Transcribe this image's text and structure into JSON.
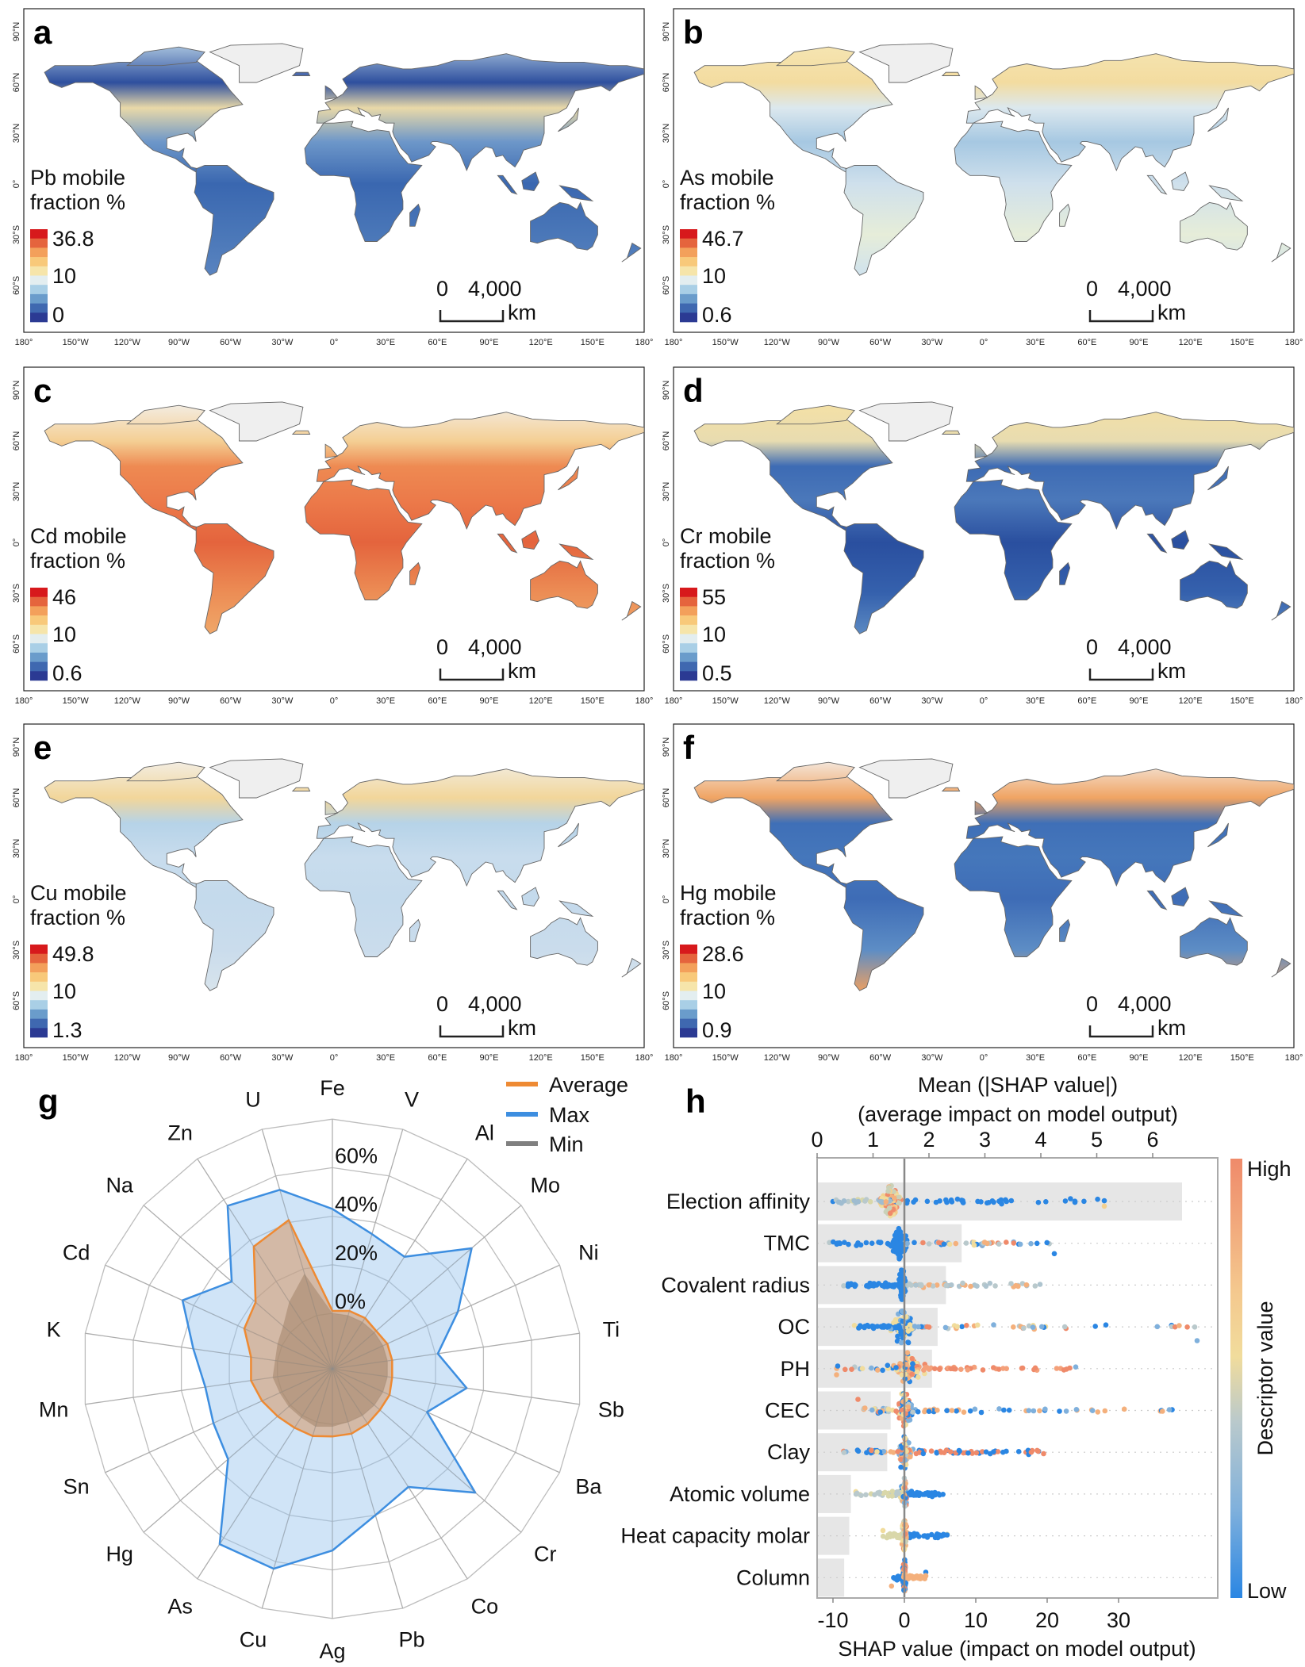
{
  "maps": {
    "lat_labels": [
      "90°N",
      "60°N",
      "30°N",
      "0°",
      "30°S",
      "60°S"
    ],
    "lon_labels": [
      "180°",
      "150°W",
      "120°W",
      "90°W",
      "60°W",
      "30°W",
      "0°",
      "30°E",
      "60°E",
      "90°E",
      "120°E",
      "150°E",
      "180°"
    ],
    "legend_colors": [
      "#d7191c",
      "#e5643d",
      "#f3a05b",
      "#f8c97a",
      "#f6e5aa",
      "#e3eef0",
      "#a9cfe6",
      "#6a9ccb",
      "#3f68b0",
      "#2b3a93"
    ],
    "scale_bar": {
      "zero": "0",
      "distance": "4,000",
      "unit": "km"
    },
    "panels": [
      {
        "letter": "a",
        "title_line1": "Pb mobile",
        "title_line2": "fraction %",
        "max": "36.8",
        "mid": "10",
        "min": "0"
      },
      {
        "letter": "b",
        "title_line1": "As mobile",
        "title_line2": "fraction %",
        "max": "46.7",
        "mid": "10",
        "min": "0.6"
      },
      {
        "letter": "c",
        "title_line1": "Cd mobile",
        "title_line2": "fraction %",
        "max": "46",
        "mid": "10",
        "min": "0.6"
      },
      {
        "letter": "d",
        "title_line1": "Cr mobile",
        "title_line2": "fraction %",
        "max": "55",
        "mid": "10",
        "min": "0.5"
      },
      {
        "letter": "e",
        "title_line1": "Cu mobile",
        "title_line2": "fraction %",
        "max": "49.8",
        "mid": "10",
        "min": "1.3"
      },
      {
        "letter": "f",
        "title_line1": "Hg mobile",
        "title_line2": "fraction %",
        "max": "28.6",
        "mid": "10",
        "min": "0.9"
      }
    ]
  },
  "chart_data": [
    {
      "panel": "g",
      "type": "radar",
      "categories": [
        "Fe",
        "V",
        "Al",
        "Mo",
        "Ni",
        "Ti",
        "Sb",
        "Ba",
        "Cr",
        "Co",
        "Pb",
        "Ag",
        "Cu",
        "As",
        "Hg",
        "Sn",
        "Mn",
        "K",
        "Cd",
        "Na",
        "Zn",
        "U"
      ],
      "ring_labels": [
        "0%",
        "20%",
        "40%",
        "60%"
      ],
      "rlim": [
        0,
        80
      ],
      "series": [
        {
          "name": "Average",
          "color": "#ee8a33",
          "values": [
            1,
            2,
            2,
            1,
            2,
            2,
            2,
            3,
            3,
            4,
            5,
            5,
            6,
            6,
            7,
            9,
            11,
            11,
            17,
            19,
            37,
            41
          ]
        },
        {
          "name": "Max",
          "color": "#3d8ee0",
          "values": [
            43,
            35,
            32,
            53,
            34,
            21,
            33,
            20,
            55,
            35,
            40,
            52,
            63,
            63,
            34,
            31,
            30,
            35,
            45,
            32,
            57,
            54
          ]
        },
        {
          "name": "Min",
          "color": "#808080",
          "values": [
            0,
            0,
            0,
            0,
            0,
            0,
            0,
            0,
            0,
            0,
            0,
            1,
            2,
            1,
            1,
            1,
            2,
            1,
            2,
            4,
            10,
            18
          ]
        }
      ],
      "legend_position": "top-right"
    },
    {
      "panel": "h",
      "type": "bar+beeswarm",
      "title_line1": "Mean (|SHAP value|)",
      "title_line2": "(average impact on model output)",
      "xlabel": "SHAP value (impact on model output)",
      "top_ticks": [
        "0",
        "1",
        "2",
        "3",
        "4",
        "5",
        "6"
      ],
      "bottom_ticks": [
        "-10",
        "0",
        "10",
        "20",
        "30"
      ],
      "top_xlim": [
        0,
        6.5
      ],
      "bottom_xlim": [
        -11,
        42
      ],
      "categories": [
        "Election affinity",
        "TMC",
        "Covalent radius",
        "OC",
        "PH",
        "CEC",
        "Clay",
        "Atomic volume",
        "Heat capacity molar",
        "Column"
      ],
      "mean_abs_shap": [
        6.51,
        2.57,
        2.29,
        2.14,
        2.04,
        1.3,
        1.24,
        0.59,
        0.56,
        0.47
      ],
      "shap_range": [
        [
          -10,
          28
        ],
        [
          -10.5,
          21
        ],
        [
          -8.5,
          19
        ],
        [
          -7,
          41
        ],
        [
          -9.5,
          24
        ],
        [
          -6.5,
          37.5
        ],
        [
          -8.5,
          19.5
        ],
        [
          -6.8,
          5.4
        ],
        [
          -3,
          6
        ],
        [
          -1.8,
          3
        ]
      ],
      "colorbar": {
        "label": "Descriptor value",
        "high": "High",
        "low": "Low",
        "high_color": "#ef8a6a",
        "low_color": "#2a86e3"
      }
    }
  ]
}
